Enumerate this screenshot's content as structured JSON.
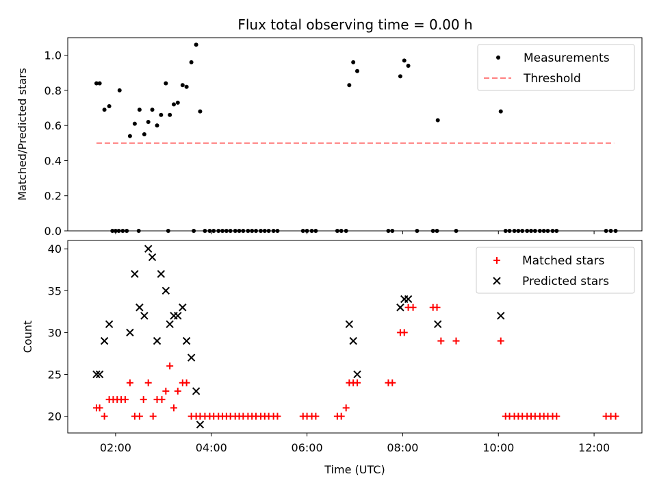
{
  "title": "Flux total observing time = 0.00 h",
  "chart_data": [
    {
      "type": "scatter",
      "panel": "top",
      "ylabel": "Matched/Predicted stars",
      "xlim": [
        "01:00",
        "13:00"
      ],
      "ylim": [
        0,
        1.1
      ],
      "yticks": [
        "0.0",
        "0.2",
        "0.4",
        "0.6",
        "0.8",
        "1.0"
      ],
      "legend_position": "top-right",
      "legend": [
        "Measurements",
        "Threshold"
      ],
      "threshold": {
        "value": 0.5,
        "from": "01:36",
        "to": "12:25",
        "color": "#ff7f7f"
      },
      "measurements": {
        "x": [
          "01:36",
          "01:40",
          "01:46",
          "01:52",
          "02:05",
          "02:18",
          "02:24",
          "02:30",
          "02:36",
          "02:41",
          "02:46",
          "02:52",
          "02:57",
          "03:03",
          "03:08",
          "03:13",
          "03:18",
          "03:24",
          "03:29",
          "03:35",
          "03:41",
          "03:46",
          "06:53",
          "06:58",
          "07:03",
          "07:57",
          "08:02",
          "08:07",
          "08:44",
          "10:03",
          "01:56",
          "02:00",
          "02:04",
          "02:09",
          "02:14",
          "02:29",
          "03:06",
          "03:38",
          "03:52",
          "03:58",
          "04:03",
          "04:09",
          "04:14",
          "04:19",
          "04:24",
          "04:30",
          "04:35",
          "04:40",
          "04:46",
          "04:51",
          "04:56",
          "05:02",
          "05:07",
          "05:12",
          "05:18",
          "05:23",
          "05:55",
          "06:00",
          "06:06",
          "06:11",
          "06:38",
          "06:43",
          "06:49",
          "07:42",
          "07:47",
          "08:18",
          "08:38",
          "08:43",
          "09:07",
          "10:09",
          "10:14",
          "10:20",
          "10:25",
          "10:30",
          "10:36",
          "10:41",
          "10:46",
          "10:52",
          "10:57",
          "11:02",
          "11:08",
          "11:13",
          "12:15",
          "12:21",
          "12:27"
        ],
        "y": [
          0.84,
          0.84,
          0.69,
          0.71,
          0.8,
          0.54,
          0.61,
          0.69,
          0.55,
          0.62,
          0.69,
          0.6,
          0.66,
          0.84,
          0.66,
          0.72,
          0.73,
          0.83,
          0.82,
          0.96,
          1.06,
          0.68,
          0.83,
          0.96,
          0.91,
          0.88,
          0.97,
          0.94,
          0.63,
          0.68,
          0,
          0,
          0,
          0,
          0,
          0,
          0,
          0,
          0,
          0,
          0,
          0,
          0,
          0,
          0,
          0,
          0,
          0,
          0,
          0,
          0,
          0,
          0,
          0,
          0,
          0,
          0,
          0,
          0,
          0,
          0,
          0,
          0,
          0,
          0,
          0,
          0,
          0,
          0,
          0,
          0,
          0,
          0,
          0,
          0,
          0,
          0,
          0,
          0,
          0,
          0,
          0,
          0,
          0,
          0
        ],
        "color": "#000000"
      }
    },
    {
      "type": "scatter",
      "panel": "bottom",
      "xlabel": "Time (UTC)",
      "ylabel": "Count",
      "xlim": [
        "01:00",
        "13:00"
      ],
      "ylim": [
        18,
        41
      ],
      "yticks": [
        "20",
        "25",
        "30",
        "35",
        "40"
      ],
      "xticks": [
        "02:00",
        "04:00",
        "06:00",
        "08:00",
        "10:00",
        "12:00"
      ],
      "legend_position": "top-right",
      "series": [
        {
          "name": "Matched stars",
          "marker": "+",
          "color": "#ff0000",
          "x": [
            "01:36",
            "01:40",
            "01:46",
            "01:52",
            "01:57",
            "02:02",
            "02:07",
            "02:12",
            "02:18",
            "02:24",
            "02:30",
            "02:35",
            "02:41",
            "02:47",
            "02:52",
            "02:58",
            "03:03",
            "03:08",
            "03:13",
            "03:18",
            "03:24",
            "03:29",
            "03:35",
            "03:41",
            "03:46",
            "03:52",
            "03:58",
            "04:03",
            "04:09",
            "04:14",
            "04:19",
            "04:24",
            "04:30",
            "04:35",
            "04:40",
            "04:46",
            "04:51",
            "04:56",
            "05:02",
            "05:07",
            "05:12",
            "05:18",
            "05:23",
            "05:55",
            "06:00",
            "06:06",
            "06:11",
            "06:38",
            "06:43",
            "06:49",
            "06:53",
            "06:58",
            "07:03",
            "07:42",
            "07:47",
            "07:57",
            "08:02",
            "08:07",
            "08:13",
            "08:38",
            "08:43",
            "08:48",
            "09:07",
            "10:03",
            "10:09",
            "10:14",
            "10:20",
            "10:25",
            "10:30",
            "10:36",
            "10:41",
            "10:46",
            "10:52",
            "10:57",
            "11:02",
            "11:08",
            "11:13",
            "12:15",
            "12:21",
            "12:27"
          ],
          "y": [
            21,
            21,
            20,
            22,
            22,
            22,
            22,
            22,
            24,
            20,
            20,
            22,
            24,
            20,
            22,
            22,
            23,
            26,
            21,
            23,
            24,
            24,
            20,
            20,
            20,
            20,
            20,
            20,
            20,
            20,
            20,
            20,
            20,
            20,
            20,
            20,
            20,
            20,
            20,
            20,
            20,
            20,
            20,
            20,
            20,
            20,
            20,
            20,
            20,
            21,
            24,
            24,
            24,
            24,
            24,
            30,
            30,
            33,
            33,
            33,
            33,
            29,
            29,
            29,
            20,
            20,
            20,
            20,
            20,
            20,
            20,
            20,
            20,
            20,
            20,
            20,
            20,
            20,
            20,
            20
          ]
        },
        {
          "name": "Predicted stars",
          "marker": "x",
          "color": "#000000",
          "x": [
            "01:36",
            "01:40",
            "01:46",
            "01:52",
            "02:18",
            "02:24",
            "02:30",
            "02:36",
            "02:41",
            "02:46",
            "02:52",
            "02:57",
            "03:03",
            "03:08",
            "03:13",
            "03:18",
            "03:24",
            "03:29",
            "03:35",
            "03:41",
            "03:46",
            "06:53",
            "06:58",
            "07:03",
            "07:57",
            "08:02",
            "08:07",
            "08:44",
            "10:03"
          ],
          "y": [
            25,
            25,
            29,
            31,
            30,
            37,
            33,
            32,
            40,
            39,
            29,
            37,
            35,
            31,
            32,
            32,
            33,
            29,
            27,
            23,
            19,
            31,
            29,
            25,
            33,
            34,
            34,
            31,
            32
          ]
        }
      ]
    }
  ]
}
